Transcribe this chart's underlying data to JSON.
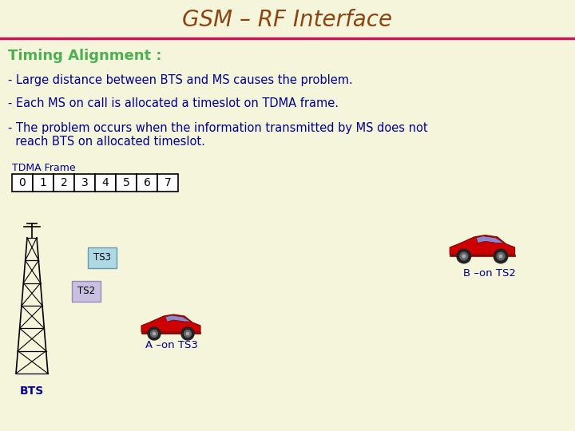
{
  "title": "GSM – RF Interface",
  "title_color": "#8B4513",
  "title_fontsize": 20,
  "bg_color": "#F5F5DC",
  "header_line_color": "#C2185B",
  "timing_label": "Timing Alignment :",
  "timing_color": "#4CAF50",
  "timing_fontsize": 13,
  "body_color": "#00008B",
  "body_fontsize": 10.5,
  "line1": "- Large distance between BTS and MS causes the problem.",
  "line2": "- Each MS on call is allocated a timeslot on TDMA frame.",
  "line3a": "- The problem occurs when the information transmitted by MS does not",
  "line3b": "  reach BTS on allocated timeslot.",
  "tdma_label": "TDMA Frame",
  "tdma_label_color": "#00008B",
  "tdma_label_fontsize": 9,
  "timeslots": [
    "0",
    "1",
    "2",
    "3",
    "4",
    "5",
    "6",
    "7"
  ],
  "ts3_label": "TS3",
  "ts2_label": "TS2",
  "label_a": "A –on TS3",
  "label_b": "B –on TS2",
  "bts_label": "BTS",
  "box_ts3_color": "#ADD8E6",
  "box_ts2_color": "#C8C0E0",
  "car_color": "#CC0000",
  "car_dark": "#800000",
  "car_wheel": "#222222",
  "car_window": "#AA99FF"
}
